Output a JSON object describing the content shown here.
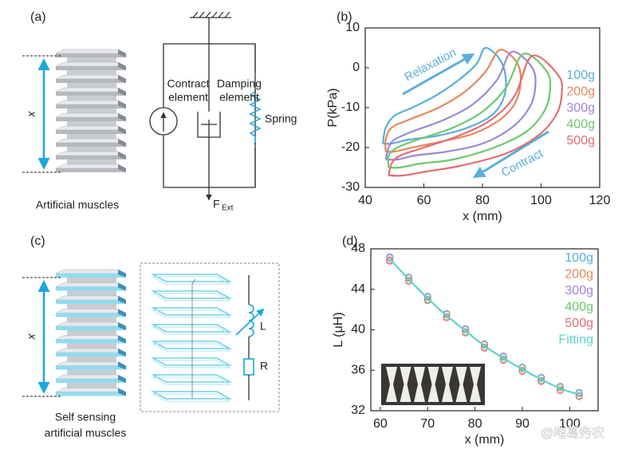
{
  "panel_a": {
    "label": "(a)",
    "x_label": "x",
    "caption": "Artificial muscles",
    "contract_label": [
      "Contract",
      "element"
    ],
    "damping_label": [
      "Damping",
      "element"
    ],
    "spring_label": "Spring",
    "force_label": "F",
    "force_sub": "Ext"
  },
  "panel_c": {
    "label": "(c)",
    "x_label": "x",
    "caption": [
      "Self sensing",
      "artificial muscles"
    ],
    "inductor_label": "L",
    "resistor_label": "R"
  },
  "chart_data": [
    {
      "type": "line",
      "panel_label": "(b)",
      "xlabel": "x (mm)",
      "ylabel": "P(kPa)",
      "xlim": [
        40,
        120
      ],
      "xticks": [
        40,
        60,
        80,
        100,
        120
      ],
      "ylim": [
        -30,
        10
      ],
      "yticks": [
        -30,
        -20,
        -10,
        0,
        10
      ],
      "legend": "center right",
      "annotations": [
        "Relaxation",
        "Contract"
      ],
      "series": [
        {
          "name": "100g",
          "color": "#5aaedc",
          "x": [
            46,
            47,
            50,
            56,
            64,
            72,
            78,
            81,
            86,
            88,
            87,
            83,
            75,
            65,
            55,
            49,
            46
          ],
          "values": [
            -19,
            -15,
            -12,
            -10,
            -7,
            -3,
            1,
            5,
            2,
            -3,
            -8,
            -12,
            -15,
            -17,
            -18,
            -19,
            -19
          ]
        },
        {
          "name": "200g",
          "color": "#e8875c",
          "x": [
            47,
            47,
            49,
            55,
            65,
            74,
            81,
            86,
            92,
            93,
            91,
            86,
            77,
            66,
            56,
            50,
            47
          ],
          "values": [
            -21,
            -18,
            -15,
            -13,
            -10,
            -6,
            -1,
            4.5,
            1,
            -4,
            -9,
            -13,
            -16.5,
            -18.5,
            -20,
            -21,
            -21
          ]
        },
        {
          "name": "300g",
          "color": "#9d86d8",
          "x": [
            47,
            48,
            50,
            56,
            67,
            77,
            85,
            90,
            97,
            98,
            96,
            90,
            80,
            68,
            57,
            51,
            47
          ],
          "values": [
            -23,
            -20,
            -18,
            -16,
            -13,
            -9,
            -3,
            4,
            0,
            -5,
            -10,
            -15,
            -19,
            -21,
            -22,
            -23,
            -23
          ]
        },
        {
          "name": "400g",
          "color": "#6cc86c",
          "x": [
            48,
            48,
            51,
            58,
            70,
            80,
            88,
            94,
            102,
            103,
            101,
            95,
            84,
            70,
            59,
            52,
            48
          ],
          "values": [
            -25,
            -22,
            -20,
            -18,
            -15,
            -11,
            -5,
            3.5,
            -1,
            -6,
            -11,
            -16,
            -20,
            -23,
            -24,
            -25,
            -25
          ]
        },
        {
          "name": "500g",
          "color": "#e26e72",
          "x": [
            48,
            49,
            52,
            60,
            72,
            83,
            91,
            97,
            106,
            107,
            105,
            99,
            88,
            73,
            61,
            53,
            48
          ],
          "values": [
            -27,
            -24,
            -22,
            -20,
            -17,
            -13,
            -7,
            3,
            -2,
            -7,
            -12,
            -17,
            -21.5,
            -24.5,
            -26,
            -27,
            -27
          ]
        }
      ]
    },
    {
      "type": "scatter",
      "panel_label": "(d)",
      "xlabel": "x (mm)",
      "ylabel": "L (μH)",
      "xlim": [
        58,
        106
      ],
      "xticks": [
        60,
        70,
        80,
        90,
        100
      ],
      "ylim": [
        32,
        48
      ],
      "yticks": [
        32,
        36,
        40,
        44,
        48
      ],
      "legend": "upper right",
      "x": [
        62,
        66,
        70,
        74,
        78,
        82,
        86,
        90,
        94,
        98,
        102
      ],
      "series": [
        {
          "name": "100g",
          "color": "#5aaedc",
          "values": [
            47.1,
            45.1,
            43.2,
            41.5,
            40.0,
            38.5,
            37.3,
            36.2,
            35.2,
            34.3,
            33.7
          ]
        },
        {
          "name": "200g",
          "color": "#e8875c",
          "values": [
            46.9,
            44.9,
            43.0,
            41.3,
            39.8,
            38.3,
            37.1,
            36.0,
            35.0,
            34.1,
            33.5
          ]
        },
        {
          "name": "300g",
          "color": "#9d86d8",
          "values": [
            47.2,
            45.2,
            43.3,
            41.6,
            40.1,
            38.6,
            37.4,
            36.3,
            35.3,
            34.4,
            33.8
          ]
        },
        {
          "name": "400g",
          "color": "#6cc86c",
          "values": [
            46.8,
            45.1,
            43.0,
            41.5,
            39.8,
            38.5,
            37.1,
            36.2,
            35.0,
            34.3,
            33.5
          ]
        },
        {
          "name": "500g",
          "color": "#e26e72",
          "values": [
            46.8,
            44.8,
            42.9,
            41.2,
            39.7,
            38.2,
            37.0,
            35.9,
            34.9,
            34.0,
            33.4
          ]
        },
        {
          "name": "Fitting",
          "color": "#5fd3cf",
          "type": "line",
          "values": [
            47.0,
            45.0,
            43.1,
            41.4,
            39.9,
            38.4,
            37.2,
            36.1,
            35.1,
            34.2,
            33.6
          ]
        }
      ]
    }
  ],
  "watermark": "@啫葛务农"
}
